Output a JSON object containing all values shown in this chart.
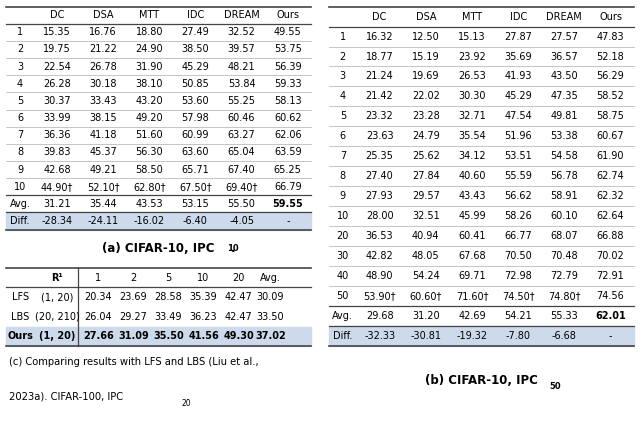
{
  "table_a": {
    "cols": [
      "",
      "DC",
      "DSA",
      "MTT",
      "IDC",
      "DREAM",
      "Ours"
    ],
    "rows": [
      [
        "1",
        "15.35",
        "16.76",
        "18.80",
        "27.49",
        "32.52",
        "49.55"
      ],
      [
        "2",
        "19.75",
        "21.22",
        "24.90",
        "38.50",
        "39.57",
        "53.75"
      ],
      [
        "3",
        "22.54",
        "26.78",
        "31.90",
        "45.29",
        "48.21",
        "56.39"
      ],
      [
        "4",
        "26.28",
        "30.18",
        "38.10",
        "50.85",
        "53.84",
        "59.33"
      ],
      [
        "5",
        "30.37",
        "33.43",
        "43.20",
        "53.60",
        "55.25",
        "58.13"
      ],
      [
        "6",
        "33.99",
        "38.15",
        "49.20",
        "57.98",
        "60.46",
        "60.62"
      ],
      [
        "7",
        "36.36",
        "41.18",
        "51.60",
        "60.99",
        "63.27",
        "62.06"
      ],
      [
        "8",
        "39.83",
        "45.37",
        "56.30",
        "63.60",
        "65.04",
        "63.59"
      ],
      [
        "9",
        "42.68",
        "49.21",
        "58.50",
        "65.71",
        "67.40",
        "65.25"
      ],
      [
        "10",
        "44.90†",
        "52.10†",
        "62.80†",
        "67.50†",
        "69.40†",
        "66.79"
      ]
    ],
    "avg_row": [
      "Avg.",
      "31.21",
      "35.44",
      "43.53",
      "53.15",
      "55.50",
      "59.55"
    ],
    "diff_row": [
      "Diff.",
      "-28.34",
      "-24.11",
      "-16.02",
      "-6.40",
      "-4.05",
      "-"
    ],
    "caption_main": "(a) CIFAR-10, IPC",
    "caption_sub": "10",
    "caption_dot": "."
  },
  "table_b": {
    "cols": [
      "",
      "DC",
      "DSA",
      "MTT",
      "IDC",
      "DREAM",
      "Ours"
    ],
    "rows": [
      [
        "1",
        "16.32",
        "12.50",
        "15.13",
        "27.87",
        "27.57",
        "47.83"
      ],
      [
        "2",
        "18.77",
        "15.19",
        "23.92",
        "35.69",
        "36.57",
        "52.18"
      ],
      [
        "3",
        "21.24",
        "19.69",
        "26.53",
        "41.93",
        "43.50",
        "56.29"
      ],
      [
        "4",
        "21.42",
        "22.02",
        "30.30",
        "45.29",
        "47.35",
        "58.52"
      ],
      [
        "5",
        "23.32",
        "23.28",
        "32.71",
        "47.54",
        "49.81",
        "58.75"
      ],
      [
        "6",
        "23.63",
        "24.79",
        "35.54",
        "51.96",
        "53.38",
        "60.67"
      ],
      [
        "7",
        "25.35",
        "25.62",
        "34.12",
        "53.51",
        "54.58",
        "61.90"
      ],
      [
        "8",
        "27.40",
        "27.84",
        "40.60",
        "55.59",
        "56.78",
        "62.74"
      ],
      [
        "9",
        "27.93",
        "29.57",
        "43.43",
        "56.62",
        "58.91",
        "62.32"
      ],
      [
        "10",
        "28.00",
        "32.51",
        "45.99",
        "58.26",
        "60.10",
        "62.64"
      ],
      [
        "20",
        "36.53",
        "40.94",
        "60.41",
        "66.77",
        "68.07",
        "66.88"
      ],
      [
        "30",
        "42.82",
        "48.05",
        "67.68",
        "70.50",
        "70.48",
        "70.02"
      ],
      [
        "40",
        "48.90",
        "54.24",
        "69.71",
        "72.98",
        "72.79",
        "72.91"
      ],
      [
        "50",
        "53.90†",
        "60.60†",
        "71.60†",
        "74.50†",
        "74.80†",
        "74.56"
      ]
    ],
    "avg_row": [
      "Avg.",
      "29.68",
      "31.20",
      "42.69",
      "54.21",
      "55.33",
      "62.01"
    ],
    "diff_row": [
      "Diff.",
      "-32.33",
      "-30.81",
      "-19.32",
      "-7.80",
      "-6.68",
      "-"
    ],
    "caption_main": "(b) CIFAR-10, IPC",
    "caption_sub": "50",
    "caption_dot": ""
  },
  "table_c": {
    "cols": [
      "",
      "R¹",
      "1",
      "2",
      "5",
      "10",
      "20",
      "Avg."
    ],
    "rows": [
      [
        "LFS",
        "(1, 20)",
        "20.34",
        "23.69",
        "28.58",
        "35.39",
        "42.47",
        "30.09"
      ],
      [
        "LBS",
        "(20, 210)",
        "26.04",
        "29.27",
        "33.49",
        "36.23",
        "42.47",
        "33.50"
      ],
      [
        "Ours",
        "(1, 20)",
        "27.66",
        "31.09",
        "35.50",
        "41.56",
        "49.30",
        "37.02"
      ]
    ],
    "ours_row_idx": 2,
    "vbar_after_col": 1,
    "caption_line1": "(c) Comparing results with LFS and LBS (Liu et al.,",
    "caption_line2": "2023a). CIFAR-100, IPC",
    "caption_sub": "20",
    "caption_dot": "."
  },
  "highlight_color": "#ccdaeb",
  "thick_line_color": "#444444",
  "thin_line_color": "#999999",
  "font_size": 7.0,
  "caption_font_size": 8.5
}
